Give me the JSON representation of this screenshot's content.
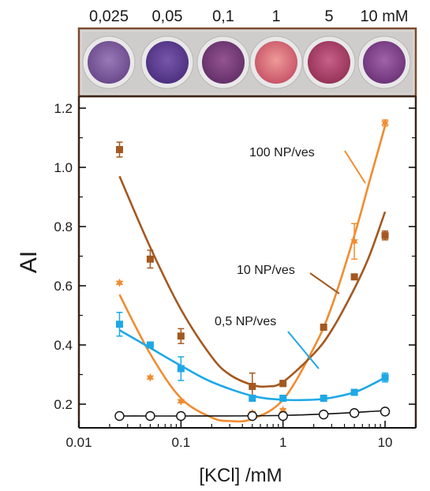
{
  "plate": {
    "concentration_labels": [
      "0,025",
      "0,05",
      "0,1",
      "1",
      "5",
      "10 mM"
    ],
    "well_colors": [
      "#7f5a9c",
      "#5f3f92",
      "#7a3f7e",
      "#d9707a",
      "#b4456c",
      "#8a4690"
    ],
    "frame_color": "#7a4a2e"
  },
  "chart_data": {
    "type": "scatter",
    "title": "",
    "xlabel": "[KCl] /mM",
    "ylabel": "AI",
    "xscale": "log",
    "xlim": [
      0.01,
      20
    ],
    "ylim": [
      0.12,
      1.24
    ],
    "x_ticks": [
      0.01,
      0.1,
      1,
      10
    ],
    "x_tick_labels": [
      "0.01",
      "0.1",
      "1",
      "10"
    ],
    "y_ticks": [
      0.2,
      0.4,
      0.6,
      0.8,
      1.0,
      1.2
    ],
    "y_tick_labels": [
      "0.2",
      "0.4",
      "0.6",
      "0.8",
      "1.0",
      "1.2"
    ],
    "grid": false,
    "legend": "none",
    "series": [
      {
        "label": "100 NP/ves",
        "color": "#f08c30",
        "marker": "star",
        "x": [
          0.025,
          0.05,
          0.1,
          0.5,
          1,
          2.5,
          5,
          10
        ],
        "y": [
          0.61,
          0.29,
          0.21,
          0.17,
          0.18,
          0.22,
          0.75,
          1.15
        ],
        "err": [
          0.005,
          0.005,
          0.005,
          0.005,
          0.005,
          0.01,
          0.06,
          0.01
        ],
        "fit": [
          [
            0.025,
            0.57
          ],
          [
            0.05,
            0.37
          ],
          [
            0.1,
            0.22
          ],
          [
            0.2,
            0.155
          ],
          [
            0.3,
            0.143
          ],
          [
            0.5,
            0.15
          ],
          [
            1,
            0.215
          ],
          [
            2,
            0.39
          ],
          [
            3,
            0.53
          ],
          [
            5,
            0.77
          ],
          [
            7,
            0.95
          ],
          [
            10,
            1.14
          ]
        ]
      },
      {
        "label": "10 NP/ves",
        "color": "#a45820",
        "marker": "square",
        "x": [
          0.025,
          0.05,
          0.1,
          0.5,
          1,
          2.5,
          5,
          10
        ],
        "y": [
          1.06,
          0.69,
          0.43,
          0.26,
          0.27,
          0.46,
          0.63,
          0.77
        ],
        "err": [
          0.025,
          0.03,
          0.025,
          0.045,
          0.01,
          0.01,
          0.005,
          0.015
        ],
        "fit": [
          [
            0.025,
            0.97
          ],
          [
            0.05,
            0.73
          ],
          [
            0.1,
            0.52
          ],
          [
            0.2,
            0.36
          ],
          [
            0.3,
            0.3
          ],
          [
            0.5,
            0.265
          ],
          [
            0.7,
            0.26
          ],
          [
            1,
            0.275
          ],
          [
            2,
            0.37
          ],
          [
            3,
            0.45
          ],
          [
            5,
            0.59
          ],
          [
            7,
            0.7
          ],
          [
            10,
            0.85
          ]
        ]
      },
      {
        "label": "0,5 NP/ves",
        "color": "#1ea8e6",
        "marker": "square",
        "x": [
          0.025,
          0.05,
          0.1,
          0.5,
          1,
          2.5,
          5,
          10
        ],
        "y": [
          0.47,
          0.4,
          0.32,
          0.22,
          0.22,
          0.22,
          0.24,
          0.29
        ],
        "err": [
          0.04,
          0.01,
          0.04,
          0.01,
          0.005,
          0.005,
          0.005,
          0.015
        ],
        "fit": [
          [
            0.025,
            0.45
          ],
          [
            0.05,
            0.39
          ],
          [
            0.1,
            0.33
          ],
          [
            0.2,
            0.275
          ],
          [
            0.5,
            0.228
          ],
          [
            1,
            0.215
          ],
          [
            2,
            0.215
          ],
          [
            3,
            0.222
          ],
          [
            5,
            0.24
          ],
          [
            7,
            0.262
          ],
          [
            10,
            0.29
          ]
        ]
      },
      {
        "label": "",
        "color": "#111111",
        "marker": "circle-open",
        "x": [
          0.025,
          0.05,
          0.1,
          0.5,
          1,
          2.5,
          5,
          10
        ],
        "y": [
          0.16,
          0.16,
          0.16,
          0.16,
          0.16,
          0.165,
          0.17,
          0.175
        ],
        "err": [
          0.01,
          0.01,
          0.01,
          0.01,
          0.01,
          0.01,
          0.01,
          0
        ],
        "fit": [
          [
            0.025,
            0.16
          ],
          [
            1,
            0.162
          ],
          [
            10,
            0.178
          ]
        ]
      }
    ],
    "annotations": [
      {
        "text": "100 NP/ves",
        "x": 0.6,
        "y": 1.06
      },
      {
        "text": "10 NP/ves",
        "x": 0.9,
        "y": 0.6
      },
      {
        "text": "0,5 NP/ves",
        "x": 0.57,
        "y": 0.43
      }
    ]
  }
}
